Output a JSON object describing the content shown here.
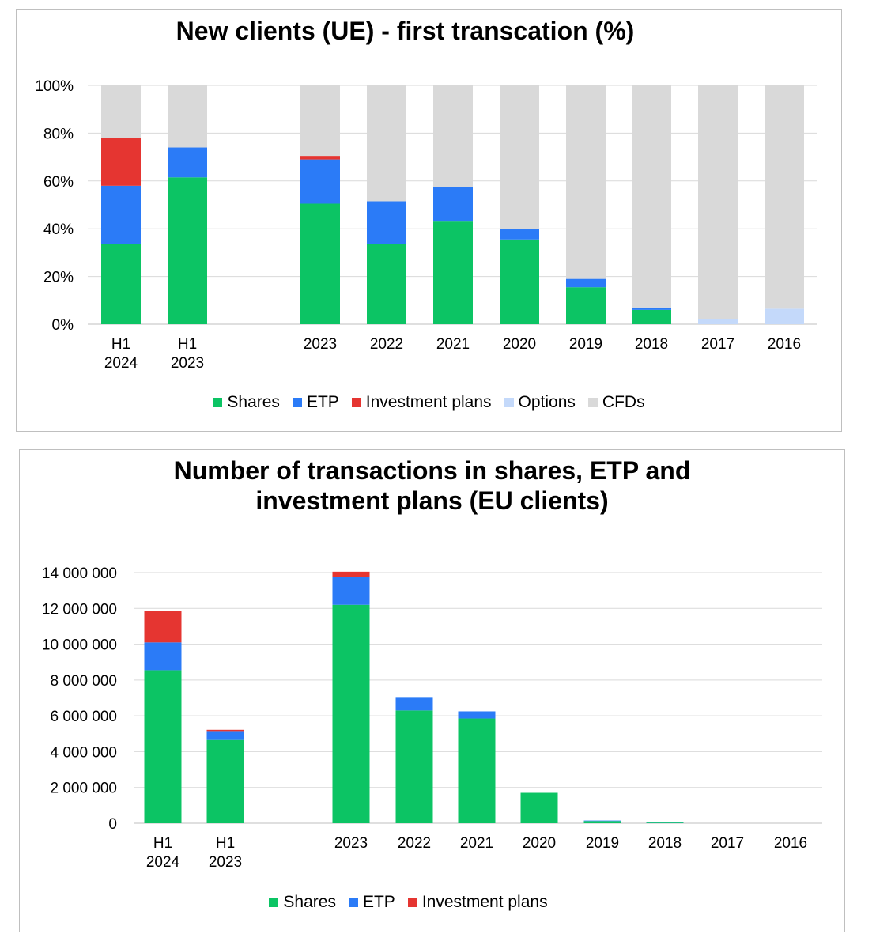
{
  "colors": {
    "Shares": "#0cc464",
    "ETP": "#2b7bf7",
    "Investment plans": "#e53531",
    "Options": "#c4d9fa",
    "CFDs": "#d9d9d9"
  },
  "chart_data": [
    {
      "type": "bar",
      "stacked": true,
      "title": "New clients (UE) - first transcation (%)",
      "categories": [
        [
          "H1",
          "2024"
        ],
        [
          "H1",
          "2023"
        ],
        [
          "2023"
        ],
        [
          "2022"
        ],
        [
          "2021"
        ],
        [
          "2020"
        ],
        [
          "2019"
        ],
        [
          "2018"
        ],
        [
          "2017"
        ],
        [
          "2016"
        ]
      ],
      "ylim": [
        0,
        100
      ],
      "ytick_labels": [
        "0%",
        "20%",
        "40%",
        "60%",
        "80%",
        "100%"
      ],
      "grid": true,
      "legend": "bottom",
      "series": [
        {
          "name": "Shares",
          "values": [
            33.5,
            61.5,
            50.5,
            33.5,
            43,
            35.5,
            15.5,
            6,
            0,
            0
          ]
        },
        {
          "name": "ETP",
          "values": [
            24.5,
            12.5,
            18.5,
            18,
            14.5,
            4.5,
            3.5,
            1,
            0,
            0
          ]
        },
        {
          "name": "Investment plans",
          "values": [
            20,
            0,
            1.5,
            0,
            0,
            0,
            0,
            0,
            0,
            0
          ]
        },
        {
          "name": "Options",
          "values": [
            0,
            0,
            0,
            0,
            0,
            0,
            0,
            0,
            2,
            6.5
          ]
        },
        {
          "name": "CFDs",
          "values": [
            22,
            26,
            29.5,
            48.5,
            42.5,
            60,
            81,
            93,
            98,
            93.5
          ]
        }
      ]
    },
    {
      "type": "bar",
      "stacked": true,
      "title": "Number of transactions in shares, ETP and investment plans (EU clients)",
      "title_lines": [
        "Number of transactions in shares, ETP and",
        "investment plans (EU clients)"
      ],
      "categories": [
        [
          "H1",
          "2024"
        ],
        [
          "H1",
          "2023"
        ],
        [
          "2023"
        ],
        [
          "2022"
        ],
        [
          "2021"
        ],
        [
          "2020"
        ],
        [
          "2019"
        ],
        [
          "2018"
        ],
        [
          "2017"
        ],
        [
          "2016"
        ]
      ],
      "ylim": [
        0,
        14000000
      ],
      "ytick_labels": [
        "0",
        "2 000 000",
        "4 000 000",
        "6 000 000",
        "8 000 000",
        "10 000 000",
        "12 000 000",
        "14 000 000"
      ],
      "grid": true,
      "legend": "bottom",
      "series": [
        {
          "name": "Shares",
          "values": [
            8550000,
            4650000,
            12200000,
            6300000,
            5850000,
            1700000,
            120000,
            40000,
            0,
            0
          ]
        },
        {
          "name": "ETP",
          "values": [
            1550000,
            500000,
            1550000,
            750000,
            400000,
            0,
            30000,
            20000,
            0,
            0
          ]
        },
        {
          "name": "Investment plans",
          "values": [
            1750000,
            70000,
            300000,
            0,
            0,
            0,
            0,
            0,
            0,
            0
          ]
        }
      ]
    }
  ]
}
